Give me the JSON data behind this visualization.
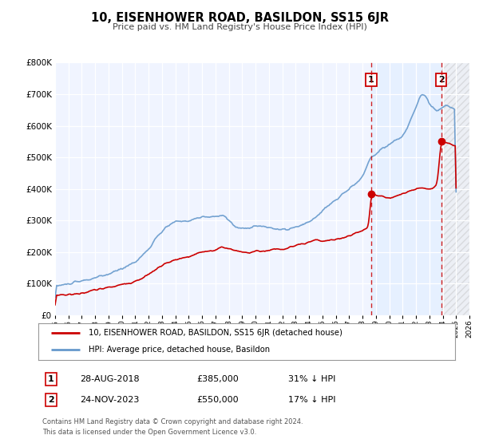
{
  "title": "10, EISENHOWER ROAD, BASILDON, SS15 6JR",
  "subtitle": "Price paid vs. HM Land Registry's House Price Index (HPI)",
  "footer1": "Contains HM Land Registry data © Crown copyright and database right 2024.",
  "footer2": "This data is licensed under the Open Government Licence v3.0.",
  "legend_line1": "10, EISENHOWER ROAD, BASILDON, SS15 6JR (detached house)",
  "legend_line2": "HPI: Average price, detached house, Basildon",
  "sale1_label": "1",
  "sale1_date": "28-AUG-2018",
  "sale1_price": "£385,000",
  "sale1_hpi": "31% ↓ HPI",
  "sale1_year": 2018.65,
  "sale1_value": 385000,
  "sale2_label": "2",
  "sale2_date": "24-NOV-2023",
  "sale2_price": "£550,000",
  "sale2_hpi": "17% ↓ HPI",
  "sale2_year": 2023.9,
  "sale2_value": 550000,
  "price_color": "#cc0000",
  "hpi_color": "#6699cc",
  "hpi_fill_color": "#dce8f5",
  "hatch_color": "#cccccc",
  "background_color": "#ffffff",
  "plot_bg_color": "#f0f4ff",
  "ylim": [
    0,
    800000
  ],
  "xlim_start": 1995,
  "xlim_end": 2026,
  "yticks": [
    0,
    100000,
    200000,
    300000,
    400000,
    500000,
    600000,
    700000,
    800000
  ],
  "xticks": [
    1995,
    1996,
    1997,
    1998,
    1999,
    2000,
    2001,
    2002,
    2003,
    2004,
    2005,
    2006,
    2007,
    2008,
    2009,
    2010,
    2011,
    2012,
    2013,
    2014,
    2015,
    2016,
    2017,
    2018,
    2019,
    2020,
    2021,
    2022,
    2023,
    2024,
    2025,
    2026
  ]
}
